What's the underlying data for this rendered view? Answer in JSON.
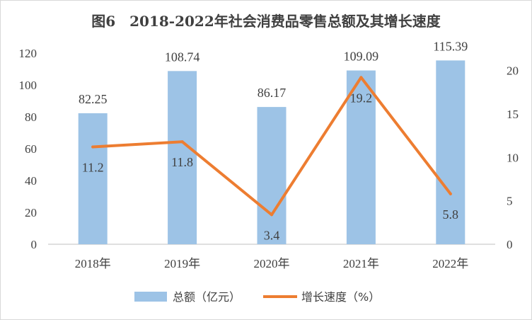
{
  "chart_data": {
    "type": "bar",
    "title": "图6　2018-2022年社会消费品零售总额及其增长速度",
    "categories": [
      "2018年",
      "2019年",
      "2020年",
      "2021年",
      "2022年"
    ],
    "series": [
      {
        "name": "总额（亿元）",
        "type": "bar",
        "axis": "left",
        "color": "#9dc3e6",
        "values": [
          82.25,
          108.74,
          86.17,
          109.09,
          115.39
        ],
        "labels": [
          "82.25",
          "108.74",
          "86.17",
          "109.09",
          "115.39"
        ]
      },
      {
        "name": "增长速度（%）",
        "type": "line",
        "axis": "right",
        "color": "#ed7d31",
        "values": [
          11.2,
          11.8,
          3.4,
          19.2,
          5.8
        ],
        "labels": [
          "11.2",
          "11.8",
          "3.4",
          "19.2",
          "5.8"
        ]
      }
    ],
    "y_left": {
      "ylim": [
        0,
        120
      ],
      "ticks": [
        "0",
        "20",
        "40",
        "60",
        "80",
        "100",
        "120"
      ]
    },
    "y_right": {
      "ylim": [
        0,
        22
      ],
      "ticks": [
        "0",
        "5",
        "10",
        "15",
        "20"
      ]
    },
    "grid": false,
    "legend_position": "bottom"
  }
}
